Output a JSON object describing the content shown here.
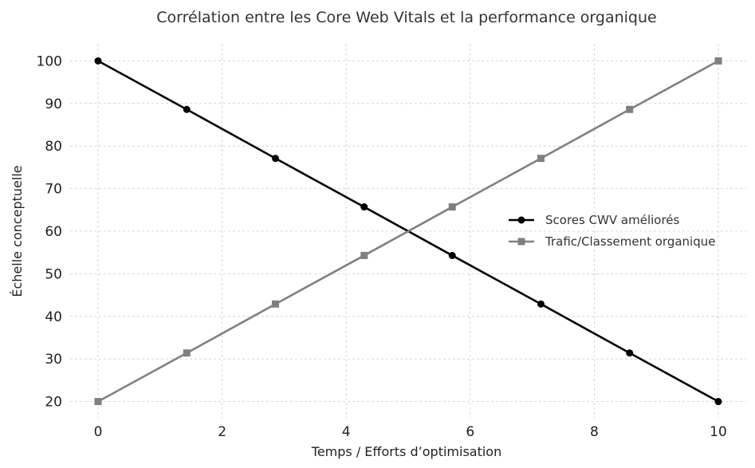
{
  "chart_data": {
    "type": "line",
    "title": "Corrélation entre les Core Web Vitals et la performance organique",
    "xlabel": "Temps / Efforts d’optimisation",
    "ylabel": "Échelle conceptuelle",
    "xlim": [
      -0.45,
      10.45
    ],
    "ylim": [
      16,
      104
    ],
    "xticks": [
      0,
      2,
      4,
      6,
      8,
      10
    ],
    "yticks": [
      20,
      30,
      40,
      50,
      60,
      70,
      80,
      90,
      100
    ],
    "grid": true,
    "legend_position": "center-right",
    "series": [
      {
        "name": "Scores CWV améliorés",
        "color": "#000000",
        "marker": "circle",
        "x": [
          0,
          1.43,
          2.86,
          4.29,
          5.71,
          7.14,
          8.57,
          10
        ],
        "y": [
          100,
          88.6,
          77.1,
          65.7,
          54.3,
          42.9,
          31.4,
          20
        ]
      },
      {
        "name": "Trafic/Classement organique",
        "color": "#808080",
        "marker": "square",
        "x": [
          0,
          1.43,
          2.86,
          4.29,
          5.71,
          7.14,
          8.57,
          10
        ],
        "y": [
          20,
          31.4,
          42.9,
          54.3,
          65.7,
          77.1,
          88.6,
          100
        ]
      }
    ]
  }
}
